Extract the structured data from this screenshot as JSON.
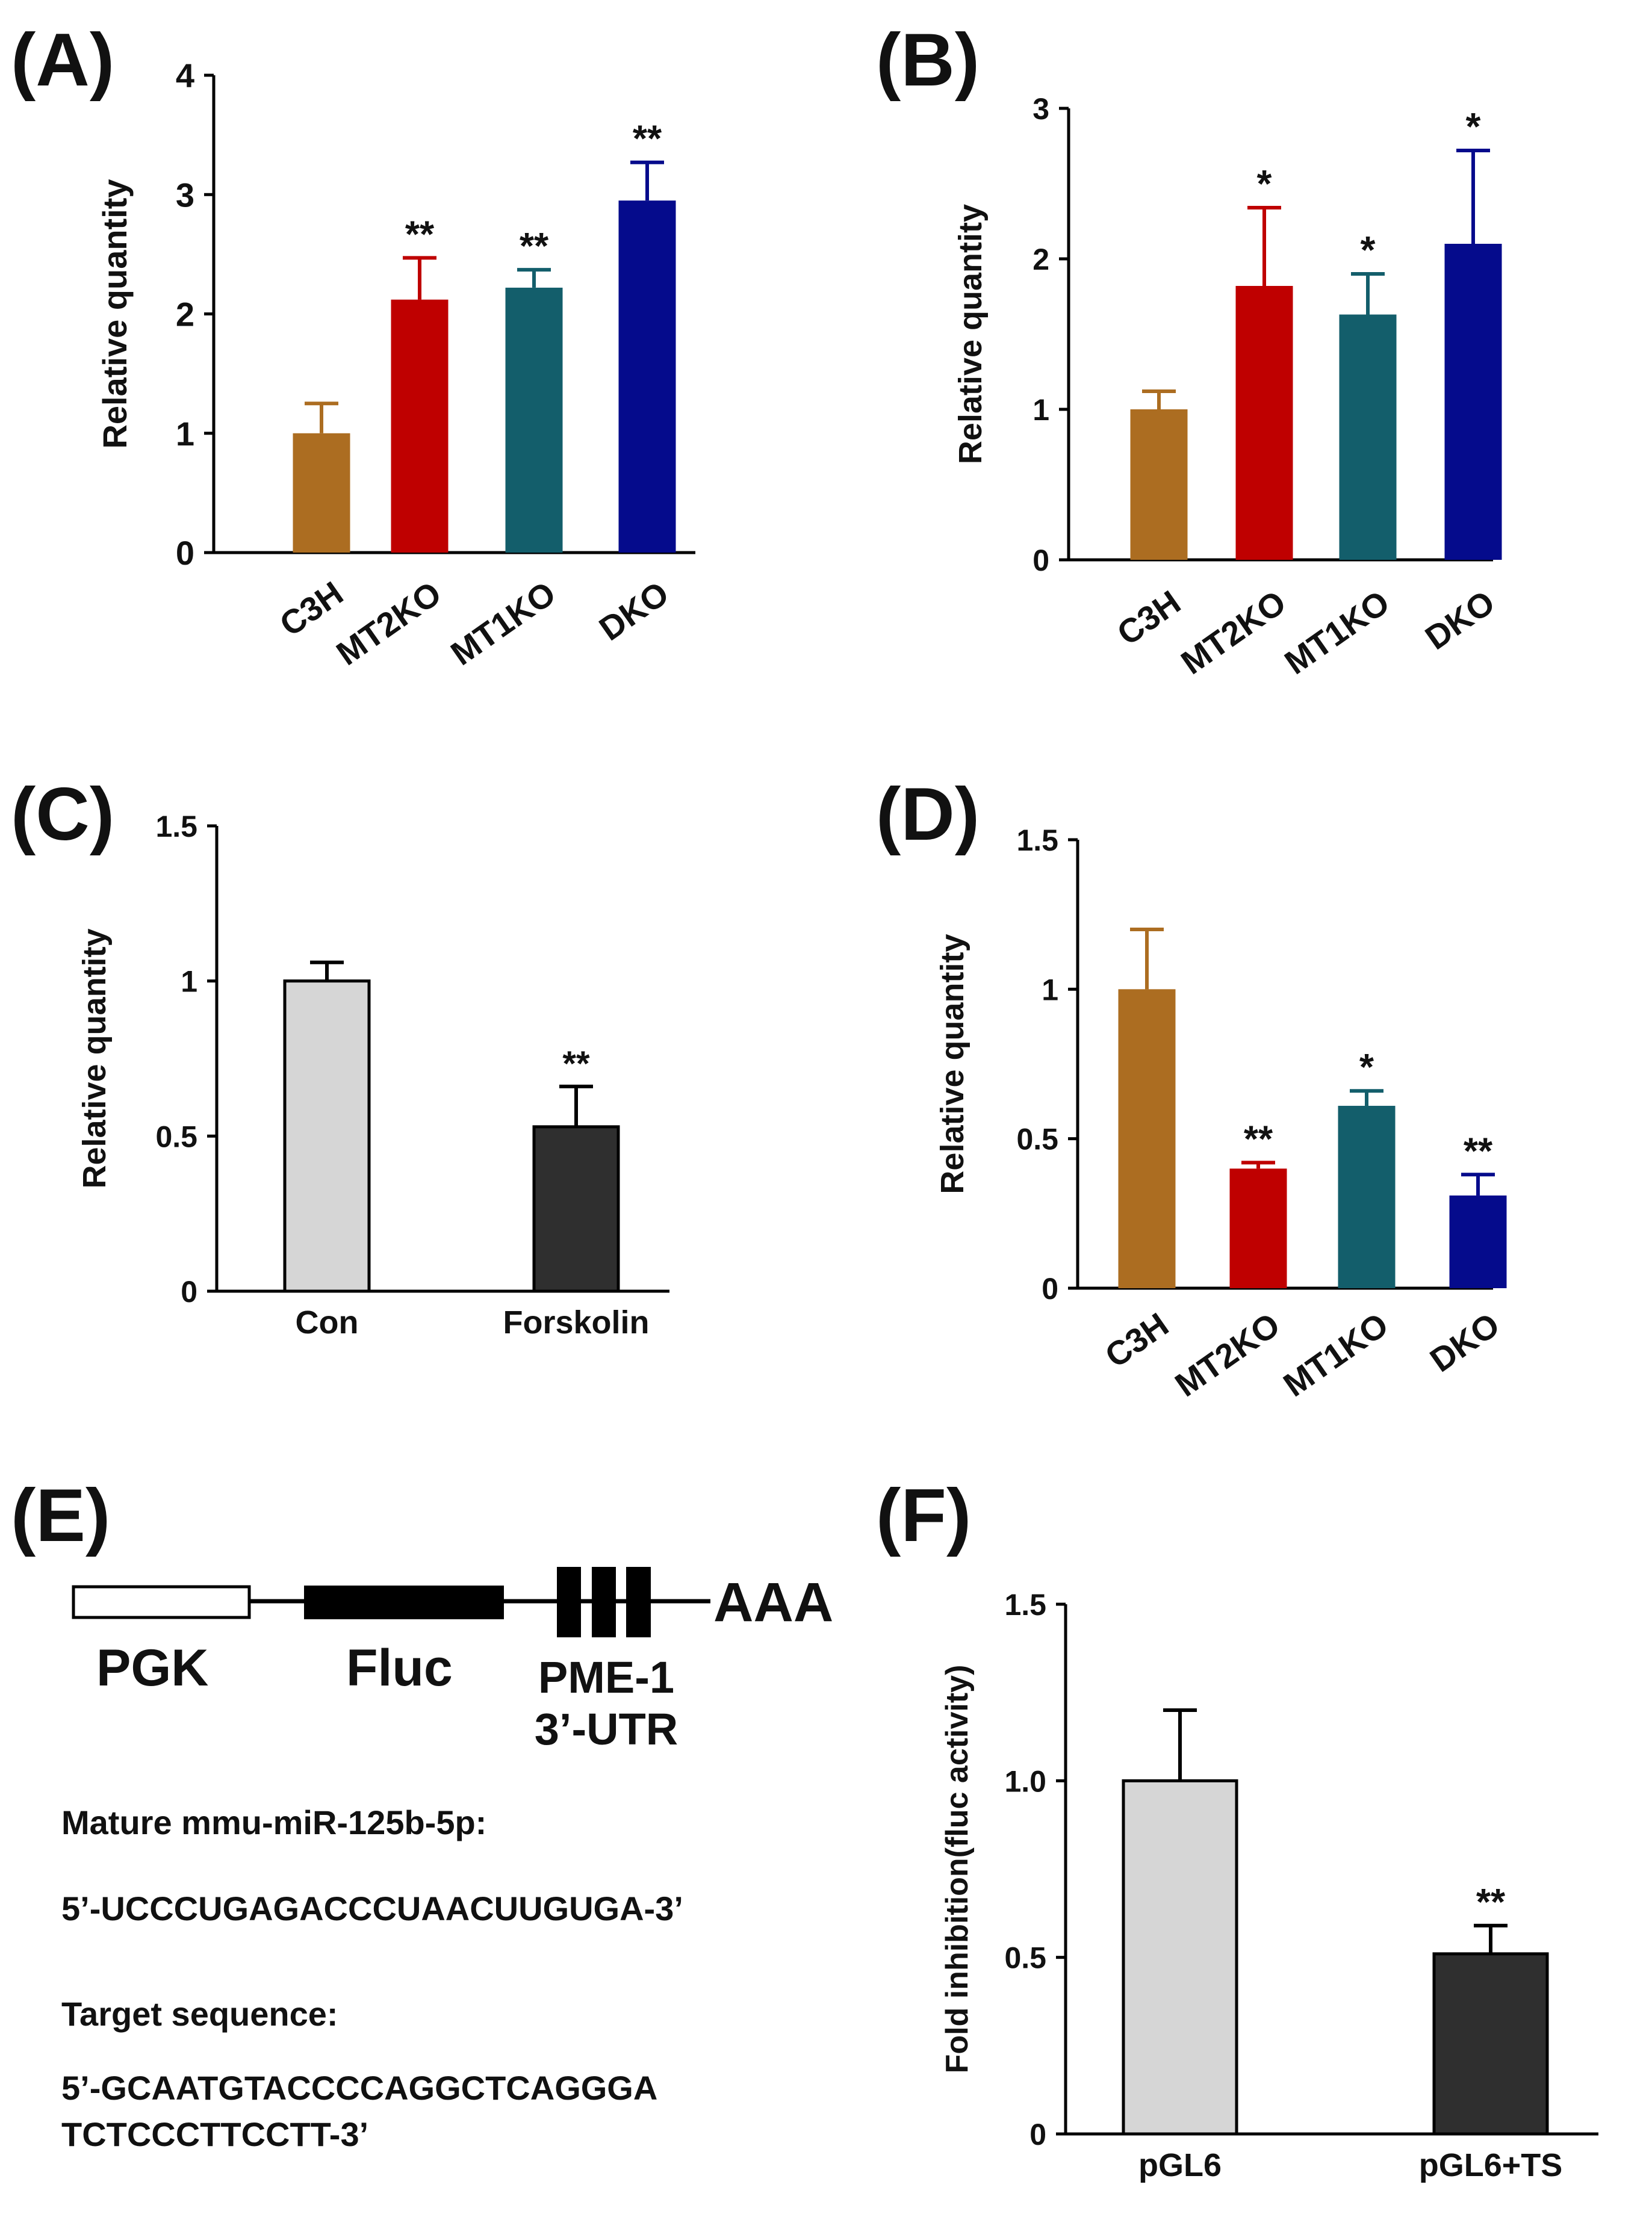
{
  "figure": {
    "panel_letters": [
      "(A)",
      "(B)",
      "(C)",
      "(D)",
      "(E)",
      "(F)"
    ]
  },
  "chart_data": [
    {
      "panel": "(A)",
      "type": "bar",
      "categories": [
        "C3H",
        "MT2KO",
        "MT1KO",
        "DKO"
      ],
      "values": [
        1.0,
        2.12,
        2.22,
        2.95
      ],
      "errors": [
        0.25,
        0.35,
        0.15,
        0.32
      ],
      "significance": [
        "",
        "**",
        "**",
        "**"
      ],
      "colors": [
        "#ac6d21",
        "#bf0000",
        "#135e6b",
        "#050b8c"
      ],
      "ylabel": "Relative  quantity",
      "xlabel": "",
      "ylim": [
        0,
        4
      ],
      "yticks": [
        "0",
        "1",
        "2",
        "3",
        "4"
      ],
      "ytick_values": [
        0,
        1,
        2,
        3,
        4
      ],
      "rotated_labels": true
    },
    {
      "panel": "(B)",
      "type": "bar",
      "categories": [
        "C3H",
        "MT2KO",
        "MT1KO",
        "DKO"
      ],
      "values": [
        1.0,
        1.82,
        1.63,
        2.1
      ],
      "errors": [
        0.12,
        0.52,
        0.27,
        0.62
      ],
      "significance": [
        "",
        "*",
        "*",
        "*"
      ],
      "colors": [
        "#ac6d21",
        "#bf0000",
        "#135e6b",
        "#050b8c"
      ],
      "ylabel": "Relative  quantity",
      "xlabel": "",
      "ylim": [
        0,
        3
      ],
      "yticks": [
        "0",
        "1",
        "2",
        "3"
      ],
      "ytick_values": [
        0,
        1,
        2,
        3
      ],
      "rotated_labels": true
    },
    {
      "panel": "(C)",
      "type": "bar",
      "categories": [
        "Con",
        "Forskolin"
      ],
      "values": [
        1.0,
        0.53
      ],
      "errors": [
        0.06,
        0.13
      ],
      "significance": [
        "",
        "**"
      ],
      "colors": [
        "#d6d6d6",
        "#2f2f2f"
      ],
      "ylabel": "Relative  quantity",
      "xlabel": "",
      "ylim": [
        0,
        1.5
      ],
      "yticks": [
        "0",
        "0.5",
        "1",
        "1.5"
      ],
      "ytick_values": [
        0,
        0.5,
        1,
        1.5
      ],
      "rotated_labels": false
    },
    {
      "panel": "(D)",
      "type": "bar",
      "categories": [
        "C3H",
        "MT2KO",
        "MT1KO",
        "DKO"
      ],
      "values": [
        1.0,
        0.4,
        0.61,
        0.31
      ],
      "errors": [
        0.2,
        0.02,
        0.05,
        0.07
      ],
      "significance": [
        "",
        "**",
        "*",
        "**"
      ],
      "colors": [
        "#ac6d21",
        "#bf0000",
        "#135e6b",
        "#050b8c"
      ],
      "ylabel": "Relative  quantity",
      "xlabel": "",
      "ylim": [
        0,
        1.5
      ],
      "yticks": [
        "0",
        "0.5",
        "1",
        "1.5"
      ],
      "ytick_values": [
        0,
        0.5,
        1,
        1.5
      ],
      "rotated_labels": true
    },
    {
      "panel": "(F)",
      "type": "bar",
      "categories": [
        "pGL6",
        "pGL6+TS"
      ],
      "values": [
        1.0,
        0.51
      ],
      "errors": [
        0.2,
        0.08
      ],
      "significance": [
        "",
        "**"
      ],
      "colors": [
        "#d6d6d6",
        "#2f2f2f"
      ],
      "ylabel": "Fold inhibition(fluc activity)",
      "xlabel": "",
      "ylim": [
        0,
        1.5
      ],
      "yticks": [
        "0",
        "0.5",
        "1.0",
        "1.5"
      ],
      "ytick_values": [
        0,
        0.5,
        1.0,
        1.5
      ],
      "rotated_labels": false
    }
  ],
  "construct": {
    "promoter": "PGK",
    "reporter": "Fluc",
    "utr_line1": "PME-1",
    "utr_line2": "3’-UTR",
    "polya": "AAA",
    "mature_label": "Mature mmu-miR-125b-5p:",
    "mature_seq": "5’-UCCCUGAGACCCUAACUUGUGA-3’",
    "target_label": "Target sequence:",
    "target_seq_line1": "5’-GCAATGTACCCCAGGCTCAGGGA",
    "target_seq_line2": "TCTCCCTTCCTT-3’"
  }
}
